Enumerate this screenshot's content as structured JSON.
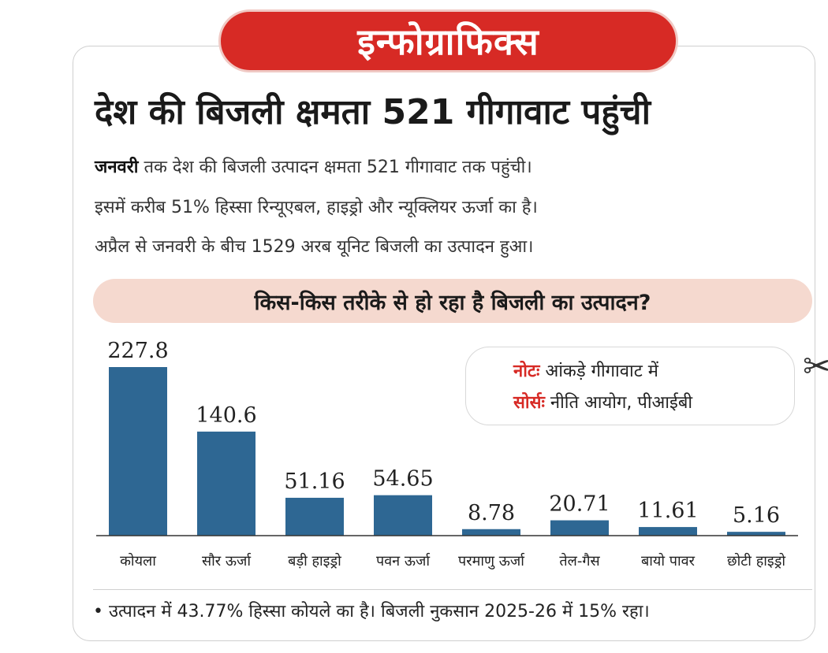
{
  "banner": "इन्फोग्राफिक्स",
  "title": "देश की बिजली क्षमता 521 गीगावाट पहुंची",
  "description": {
    "line1_bold": "जनवरी",
    "line1_rest": " तक देश की बिजली उत्पादन क्षमता 521 गीगावाट तक पहुंची।",
    "line2": "इसमें करीब 51% हिस्सा रिन्यूएबल, हाइड्रो और न्यूक्लियर ऊर्जा का है।",
    "line3": "अप्रैल से जनवरी के बीच 1529 अरब यूनिट बिजली का उत्पादन हुआ।"
  },
  "subheading": "किस-किस तरीके से हो रहा है बिजली का उत्पादन?",
  "note": {
    "note_label": "नोटः",
    "note_text": " आंकड़े गीगावाट में",
    "source_label": "सोर्सः",
    "source_text": " नीति आयोग, पीआईबी"
  },
  "footer": "• उत्पादन में 43.77% हिस्सा कोयले का है। बिजली नुकसान 2025-26 में 15% रहा।",
  "colors": {
    "accent": "#d72a25",
    "bar": "#2e6793",
    "band": "#f5d9cf"
  },
  "chart_data": {
    "type": "bar",
    "categories": [
      "कोयला",
      "सौर ऊर्जा",
      "बड़ी हाइड्रो",
      "पवन ऊर्जा",
      "परमाणु ऊर्जा",
      "तेल-गैस",
      "बायो पावर",
      "छोटी हाइड्रो"
    ],
    "values": [
      227.8,
      140.6,
      51.16,
      54.65,
      8.78,
      20.71,
      11.61,
      5.16
    ],
    "value_labels": [
      "227.8",
      "140.6",
      "51.16",
      "54.65",
      "8.78",
      "20.71",
      "11.61",
      "5.16"
    ],
    "ylim": [
      0,
      227.8
    ],
    "grid": false
  }
}
